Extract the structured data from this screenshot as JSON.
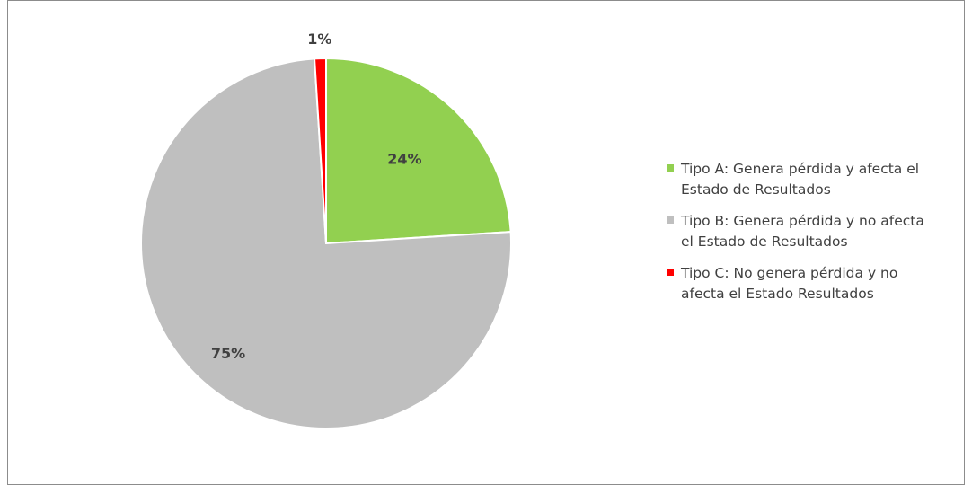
{
  "chart_data": {
    "type": "pie",
    "categories": [
      "Tipo A: Genera pérdida y afecta el Estado de Resultados",
      "Tipo B: Genera pérdida y no afecta el Estado de Resultados",
      "Tipo C: No genera pérdida y no afecta el Estado Resultados"
    ],
    "values": [
      24,
      75,
      1
    ],
    "data_labels": [
      "24%",
      "75%",
      "1%"
    ],
    "colors": [
      "#92d050",
      "#bfbfbf",
      "#ff0000"
    ],
    "legend": {
      "placement": "right",
      "items": [
        {
          "label": "Tipo A: Genera pérdida y afecta el\nEstado de Resultados",
          "color": "#92d050"
        },
        {
          "label": "Tipo B: Genera pérdida y no afecta\nel Estado de Resultados",
          "color": "#bfbfbf"
        },
        {
          "label": "Tipo C: No genera pérdida y no\nafecta el Estado Resultados",
          "color": "#ff0000"
        }
      ]
    }
  }
}
